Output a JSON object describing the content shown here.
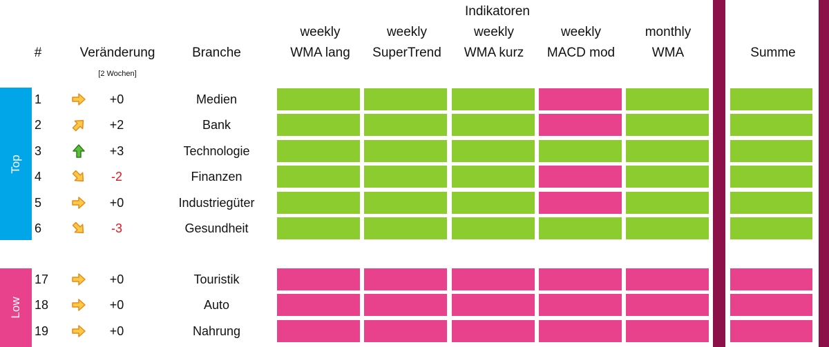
{
  "header": {
    "group_title": "Indikatoren",
    "col_num": "#",
    "col_change": "Veränderung",
    "col_change_sub": "[2 Wochen]",
    "col_branch": "Branche",
    "indicators": [
      {
        "line1": "weekly",
        "line2": "WMA lang"
      },
      {
        "line1": "weekly",
        "line2": "SuperTrend"
      },
      {
        "line1": "weekly",
        "line2": "WMA kurz"
      },
      {
        "line1": "weekly",
        "line2": "MACD mod"
      },
      {
        "line1": "monthly",
        "line2": "WMA"
      }
    ],
    "col_sum": "Summe"
  },
  "groups": {
    "top": "Top",
    "low": "Low"
  },
  "colors": {
    "positive": "#8dcc2e",
    "negative": "#e8428c",
    "top_band": "#00a6e8",
    "low_band": "#e8428c",
    "divider": "#8b1148",
    "down_delta": "#e8141e"
  },
  "rows": [
    {
      "rank": "1",
      "arrow": "right-arrow-icon",
      "delta": "+0",
      "branch": "Medien",
      "signals": [
        "green",
        "green",
        "green",
        "pink",
        "green"
      ],
      "sum": "green"
    },
    {
      "rank": "2",
      "arrow": "up-right-arrow-icon",
      "delta": "+2",
      "branch": "Bank",
      "signals": [
        "green",
        "green",
        "green",
        "pink",
        "green"
      ],
      "sum": "green"
    },
    {
      "rank": "3",
      "arrow": "up-arrow-icon",
      "delta": "+3",
      "branch": "Technologie",
      "signals": [
        "green",
        "green",
        "green",
        "green",
        "green"
      ],
      "sum": "green"
    },
    {
      "rank": "4",
      "arrow": "down-right-arrow-icon",
      "delta": "-2",
      "branch": "Finanzen",
      "signals": [
        "green",
        "green",
        "green",
        "pink",
        "green"
      ],
      "sum": "green"
    },
    {
      "rank": "5",
      "arrow": "right-arrow-icon",
      "delta": "+0",
      "branch": "Industriegüter",
      "signals": [
        "green",
        "green",
        "green",
        "pink",
        "green"
      ],
      "sum": "green"
    },
    {
      "rank": "6",
      "arrow": "down-right-arrow-icon",
      "delta": "-3",
      "branch": "Gesundheit",
      "signals": [
        "green",
        "green",
        "green",
        "green",
        "green"
      ],
      "sum": "green"
    },
    {
      "rank": "17",
      "arrow": "right-arrow-icon",
      "delta": "+0",
      "branch": "Touristik",
      "signals": [
        "pink",
        "pink",
        "pink",
        "pink",
        "pink"
      ],
      "sum": "pink"
    },
    {
      "rank": "18",
      "arrow": "right-arrow-icon",
      "delta": "+0",
      "branch": "Auto",
      "signals": [
        "pink",
        "pink",
        "pink",
        "pink",
        "pink"
      ],
      "sum": "pink"
    },
    {
      "rank": "19",
      "arrow": "right-arrow-icon",
      "delta": "+0",
      "branch": "Nahrung",
      "signals": [
        "pink",
        "pink",
        "pink",
        "pink",
        "pink"
      ],
      "sum": "pink"
    }
  ]
}
